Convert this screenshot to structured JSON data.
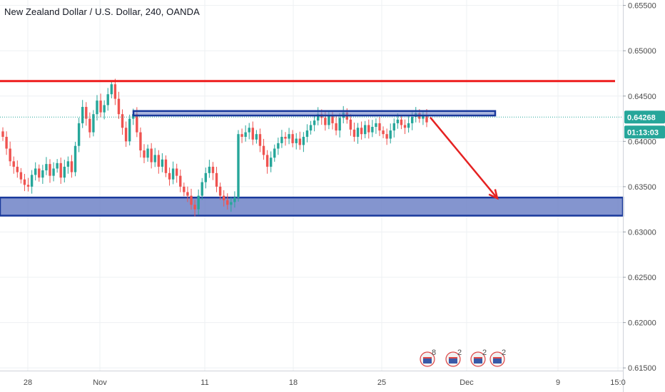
{
  "chart_data": {
    "type": "candlestick",
    "title": "New Zealand Dollar / U.S. Dollar, 240, OANDA",
    "y_axis": {
      "ticks": [
        "0.65500",
        "0.65000",
        "0.64500",
        "0.64000",
        "0.63500",
        "0.63000",
        "0.62500",
        "0.62000",
        "0.61500"
      ],
      "tick_values": [
        0.655,
        0.65,
        0.645,
        0.64,
        0.635,
        0.63,
        0.625,
        0.62,
        0.615
      ],
      "ylim": [
        0.6147,
        0.6556
      ]
    },
    "x_axis": {
      "ticks": [
        "28",
        "Nov",
        "11",
        "18",
        "25",
        "Dec",
        "9",
        "15:0"
      ]
    },
    "last_price": "0.64268",
    "countdown": "01:13:03",
    "colors": {
      "up": "#26a69a",
      "down": "#ef5350",
      "resistance_line": "#ee1d1d",
      "box_border": "#1a3a9c",
      "box_fill": "#6f83c7",
      "arrow": "#e52222",
      "price_tag": "#26a69a"
    },
    "annotations": {
      "resistance_level": 0.64665,
      "upper_box": [
        0.64285,
        0.64335
      ],
      "support_zone": [
        0.6318,
        0.6338
      ],
      "arrow": {
        "from": "current",
        "direction": "down",
        "target": "support_zone"
      }
    },
    "event_badges": [
      "8",
      "2",
      "2",
      "2"
    ],
    "approximate_closes": [
      0.6405,
      0.6392,
      0.6378,
      0.6372,
      0.6366,
      0.6358,
      0.6352,
      0.635,
      0.6363,
      0.637,
      0.636,
      0.6368,
      0.6375,
      0.6362,
      0.637,
      0.6376,
      0.636,
      0.6372,
      0.6378,
      0.6366,
      0.6395,
      0.642,
      0.6438,
      0.6425,
      0.641,
      0.643,
      0.6445,
      0.6432,
      0.644,
      0.6452,
      0.6463,
      0.6447,
      0.643,
      0.6415,
      0.64,
      0.6425,
      0.643,
      0.641,
      0.639,
      0.6382,
      0.6392,
      0.6377,
      0.6385,
      0.6372,
      0.638,
      0.6365,
      0.6358,
      0.637,
      0.6362,
      0.635,
      0.6344,
      0.634,
      0.633,
      0.6325,
      0.634,
      0.6355,
      0.6365,
      0.6372,
      0.6365,
      0.635,
      0.634,
      0.6335,
      0.633,
      0.6333,
      0.6338,
      0.6408,
      0.6405,
      0.641,
      0.6415,
      0.6402,
      0.6408,
      0.6395,
      0.6385,
      0.6372,
      0.6382,
      0.6392,
      0.6398,
      0.6405,
      0.6403,
      0.6408,
      0.6398,
      0.6403,
      0.6396,
      0.6405,
      0.6412,
      0.6418,
      0.6423,
      0.643,
      0.6426,
      0.6418,
      0.6428,
      0.642,
      0.6412,
      0.6426,
      0.6432,
      0.6424,
      0.6413,
      0.6405,
      0.6415,
      0.6408,
      0.6418,
      0.641,
      0.6416,
      0.642,
      0.6412,
      0.6408,
      0.6403,
      0.6412,
      0.642,
      0.6424,
      0.6418,
      0.6415,
      0.642,
      0.6427,
      0.6431,
      0.6425,
      0.6428,
      0.6421
    ]
  }
}
